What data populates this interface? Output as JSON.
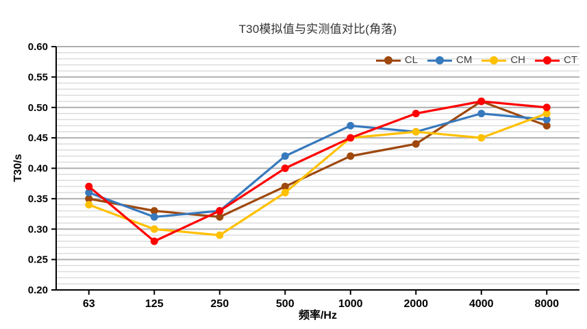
{
  "chart_data": {
    "type": "line",
    "title": "T30模拟值与实测值对比(角落)",
    "xlabel": "频率/Hz",
    "ylabel": "T30/s",
    "categories": [
      "63",
      "125",
      "250",
      "500",
      "1000",
      "2000",
      "4000",
      "8000"
    ],
    "ylim": [
      0.2,
      0.6
    ],
    "ytick_step": 0.05,
    "yminor_step": 0.01,
    "ytick_decimals": 2,
    "grid": "horizontal major and minor gridlines",
    "legend_position": "top-right inside plot",
    "series": [
      {
        "name": "CL",
        "color": "#9E480E",
        "values": [
          0.35,
          0.33,
          0.32,
          0.37,
          0.42,
          0.44,
          0.51,
          0.47
        ]
      },
      {
        "name": "CM",
        "color": "#3779BD",
        "values": [
          0.36,
          0.32,
          0.33,
          0.42,
          0.47,
          0.46,
          0.49,
          0.48
        ]
      },
      {
        "name": "CH",
        "color": "#FFC000",
        "values": [
          0.34,
          0.3,
          0.29,
          0.36,
          0.45,
          0.46,
          0.45,
          0.49
        ]
      },
      {
        "name": "CT",
        "color": "#FF0000",
        "values": [
          0.37,
          0.28,
          0.33,
          0.4,
          0.45,
          0.49,
          0.51,
          0.5
        ]
      }
    ],
    "colors": {
      "major_grid": "#AFAFAF",
      "minor_grid": "#DCDCDC",
      "axis": "#000000",
      "tick_text": "#000000",
      "title_text": "#333333",
      "background": "#FFFFFF"
    }
  }
}
